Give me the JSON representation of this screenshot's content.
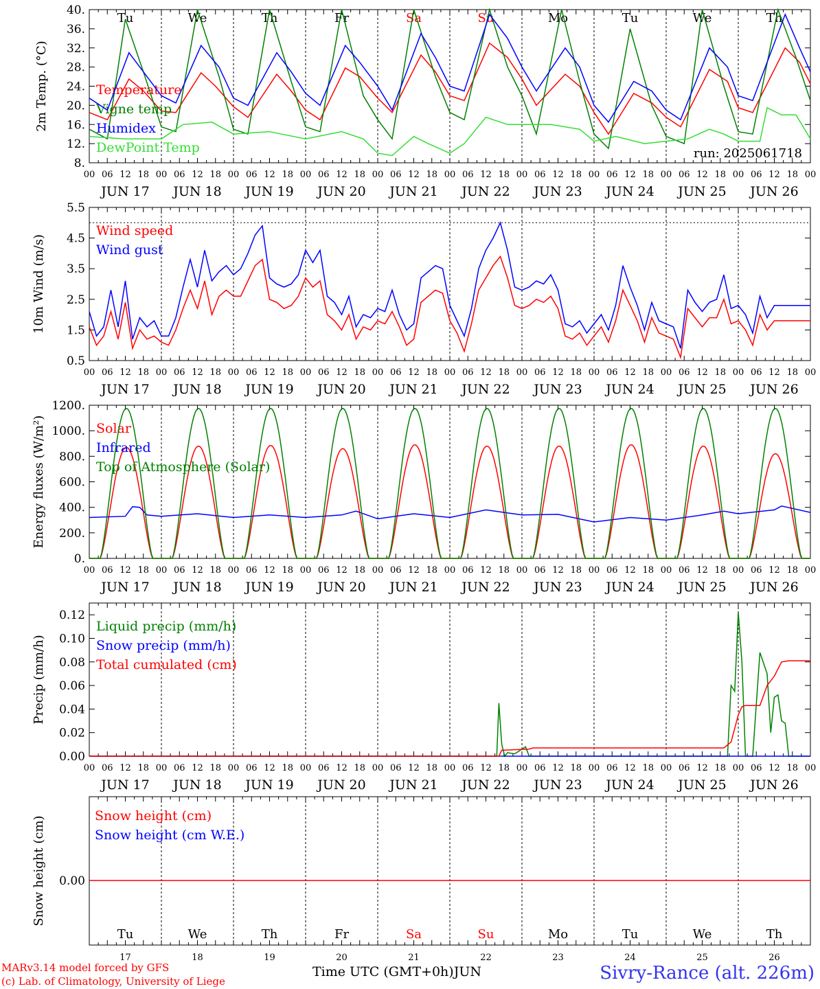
{
  "days": [
    "JUN 17",
    "JUN 18",
    "JUN 19",
    "JUN 20",
    "JUN 21",
    "JUN 22",
    "JUN 23",
    "JUN 24",
    "JUN 25",
    "JUN 26"
  ],
  "weekdays": [
    "Tu",
    "We",
    "Th",
    "Fr",
    "Sa",
    "Su",
    "Mo",
    "Tu",
    "We",
    "Th"
  ],
  "weekday_colors": [
    "#000000",
    "#000000",
    "#000000",
    "#000000",
    "#ff0000",
    "#ff0000",
    "#000000",
    "#000000",
    "#000000",
    "#000000"
  ],
  "day_numbers": [
    "17",
    "18",
    "19",
    "20",
    "21",
    "22",
    "23",
    "24",
    "25",
    "26"
  ],
  "hour_ticks": [
    "00",
    "06",
    "12",
    "18"
  ],
  "colors": {
    "red": "#ff0000",
    "blue": "#0000ff",
    "green": "#008000",
    "lightgreen": "#33dd33"
  },
  "chart_data": [
    {
      "type": "line",
      "ylabel": "2m Temp. (°C)",
      "ylim": [
        8,
        40
      ],
      "yticks": [
        "8.",
        "12.",
        "16.",
        "20.",
        "24.",
        "28.",
        "32.",
        "36.",
        "40."
      ],
      "run_label": "run: 2025061718",
      "x_unit": "days since JUN 17 00 UTC",
      "series": [
        {
          "name": "Temperature",
          "color": "#ff0000",
          "x": [
            0,
            0.25,
            0.55,
            0.75,
            1,
            1.2,
            1.55,
            1.75,
            2,
            2.2,
            2.6,
            2.8,
            3,
            3.2,
            3.55,
            3.75,
            4,
            4.2,
            4.6,
            4.8,
            5,
            5.2,
            5.55,
            5.8,
            6,
            6.2,
            6.6,
            6.8,
            7,
            7.2,
            7.55,
            7.8,
            8,
            8.2,
            8.6,
            8.85,
            9,
            9.2,
            9.65,
            9.85,
            10
          ],
          "values": [
            18.5,
            17,
            25.5,
            23,
            18.8,
            18.5,
            26.8,
            24,
            19.7,
            17.5,
            26.5,
            23,
            19,
            17,
            27.8,
            26,
            21.5,
            18.5,
            30.5,
            27,
            22,
            21,
            33,
            30,
            25.5,
            20,
            26.5,
            24,
            18.5,
            14,
            22.5,
            20.5,
            17.5,
            15.5,
            27.5,
            25,
            19.5,
            18.5,
            32,
            29,
            24.5
          ]
        },
        {
          "name": "Vigne temp",
          "color": "#008000",
          "x": [
            0,
            0.25,
            0.5,
            0.75,
            1,
            1.2,
            1.5,
            1.8,
            2,
            2.2,
            2.5,
            2.8,
            3,
            3.2,
            3.5,
            3.8,
            4,
            4.2,
            4.5,
            4.8,
            5,
            5.2,
            5.55,
            5.8,
            6,
            6.2,
            6.55,
            6.8,
            7,
            7.2,
            7.5,
            7.8,
            8,
            8.25,
            8.5,
            8.8,
            9,
            9.2,
            9.55,
            9.8,
            10
          ],
          "values": [
            15,
            13,
            38,
            27,
            15.5,
            14.5,
            40,
            26,
            15,
            14,
            40,
            25,
            15.5,
            14.5,
            40,
            22,
            17,
            13,
            40,
            26,
            18.5,
            17,
            40,
            28,
            22,
            14,
            40,
            25,
            14,
            11,
            36,
            20,
            13.5,
            12,
            40,
            24,
            14.5,
            14,
            40,
            30,
            21
          ]
        },
        {
          "name": "Humidex",
          "color": "#0000ff",
          "x": [
            0,
            0.25,
            0.55,
            0.75,
            1,
            1.2,
            1.55,
            1.8,
            2,
            2.2,
            2.6,
            2.8,
            3,
            3.2,
            3.55,
            3.75,
            4,
            4.2,
            4.6,
            4.8,
            5,
            5.2,
            5.55,
            5.8,
            6,
            6.2,
            6.6,
            6.8,
            7,
            7.2,
            7.55,
            7.8,
            8,
            8.2,
            8.6,
            8.85,
            9,
            9.2,
            9.65,
            9.85,
            10
          ],
          "values": [
            21.5,
            19,
            31,
            27,
            22,
            20.5,
            32.5,
            28,
            21.5,
            20,
            31,
            27,
            22.5,
            20,
            32.5,
            29,
            24,
            19,
            35,
            30,
            24,
            23,
            39,
            34,
            28,
            23,
            32,
            28,
            20,
            16.5,
            25,
            23,
            19,
            17,
            32,
            28,
            22,
            21,
            39,
            32,
            27
          ]
        },
        {
          "name": "DewPoint Temp",
          "color": "#33dd33",
          "x": [
            0,
            0.5,
            1,
            1.3,
            1.7,
            2,
            2.5,
            3,
            3.5,
            3.8,
            4,
            4.2,
            4.5,
            4.7,
            5,
            5.2,
            5.5,
            5.8,
            6,
            6.4,
            6.8,
            7,
            7.3,
            7.7,
            8,
            8.3,
            8.6,
            8.8,
            9,
            9.3,
            9.4,
            9.6,
            9.8,
            10
          ],
          "values": [
            13.5,
            13,
            13,
            16,
            16.5,
            14,
            14.5,
            13,
            14.5,
            13,
            10,
            9.5,
            13.5,
            12,
            10,
            12,
            17.5,
            16,
            16,
            16,
            15,
            12.5,
            13.5,
            12,
            12.5,
            13,
            15,
            14,
            12.5,
            12.5,
            19.5,
            18,
            18,
            13
          ]
        }
      ]
    },
    {
      "type": "line",
      "ylabel": "10m Wind (m/s)",
      "ylim": [
        0.5,
        5.5
      ],
      "yticks": [
        "0.5",
        "1.5",
        "2.5",
        "3.5",
        "4.5",
        "5.5"
      ],
      "x_unit": "days since JUN 17 00 UTC",
      "reference_line": 5,
      "series": [
        {
          "name": "Wind speed",
          "color": "#ff0000",
          "x": [
            0,
            0.1,
            0.2,
            0.3,
            0.4,
            0.5,
            0.6,
            0.7,
            0.8,
            0.9,
            1,
            1.1,
            1.2,
            1.3,
            1.4,
            1.5,
            1.6,
            1.7,
            1.8,
            1.9,
            2,
            2.1,
            2.2,
            2.3,
            2.4,
            2.5,
            2.6,
            2.7,
            2.8,
            2.9,
            3,
            3.1,
            3.2,
            3.3,
            3.4,
            3.5,
            3.6,
            3.7,
            3.8,
            3.9,
            4,
            4.1,
            4.2,
            4.3,
            4.4,
            4.5,
            4.6,
            4.7,
            4.8,
            4.9,
            5,
            5.1,
            5.2,
            5.3,
            5.4,
            5.5,
            5.6,
            5.7,
            5.8,
            5.9,
            6,
            6.1,
            6.2,
            6.3,
            6.4,
            6.5,
            6.6,
            6.7,
            6.8,
            6.9,
            7,
            7.1,
            7.2,
            7.3,
            7.4,
            7.5,
            7.6,
            7.7,
            7.8,
            7.9,
            8,
            8.1,
            8.2,
            8.3,
            8.4,
            8.5,
            8.6,
            8.7,
            8.8,
            8.9,
            9,
            9.1,
            9.2,
            9.3,
            9.4,
            9.5,
            9.6,
            9.7,
            9.8,
            9.9,
            10
          ],
          "values": [
            1.6,
            1.0,
            1.3,
            2.1,
            1.2,
            2.4,
            0.9,
            1.5,
            1.2,
            1.3,
            1.1,
            1.0,
            1.5,
            2.2,
            2.8,
            2.2,
            3.1,
            2.0,
            2.6,
            2.8,
            2.6,
            2.6,
            3.1,
            3.6,
            3.8,
            2.5,
            2.4,
            2.2,
            2.3,
            2.6,
            3.2,
            2.9,
            3.1,
            2.0,
            1.8,
            1.5,
            2.0,
            1.2,
            1.6,
            1.5,
            1.8,
            1.7,
            2.1,
            1.6,
            1.0,
            1.2,
            2.4,
            2.6,
            2.8,
            2.7,
            1.8,
            1.4,
            0.8,
            1.7,
            2.8,
            3.2,
            3.6,
            3.9,
            3.2,
            2.3,
            2.2,
            2.3,
            2.5,
            2.4,
            2.6,
            2.2,
            1.3,
            1.2,
            1.4,
            1.0,
            1.3,
            1.6,
            1.1,
            1.8,
            2.8,
            2.3,
            1.8,
            1.1,
            1.9,
            1.4,
            1.3,
            1.2,
            0.6,
            2.2,
            1.9,
            1.6,
            1.9,
            1.9,
            2.5,
            1.7,
            1.8,
            1.5,
            1.0,
            2.0,
            1.5,
            1.8,
            1.8,
            1.8,
            1.8,
            1.8,
            1.8
          ]
        },
        {
          "name": "Wind gust",
          "color": "#0000ff",
          "x": [
            0,
            0.1,
            0.2,
            0.3,
            0.4,
            0.5,
            0.6,
            0.7,
            0.8,
            0.9,
            1,
            1.1,
            1.2,
            1.3,
            1.4,
            1.5,
            1.6,
            1.7,
            1.8,
            1.9,
            2,
            2.1,
            2.2,
            2.3,
            2.4,
            2.5,
            2.6,
            2.7,
            2.8,
            2.9,
            3,
            3.1,
            3.2,
            3.3,
            3.4,
            3.5,
            3.6,
            3.7,
            3.8,
            3.9,
            4,
            4.1,
            4.2,
            4.3,
            4.4,
            4.5,
            4.6,
            4.7,
            4.8,
            4.9,
            5,
            5.1,
            5.2,
            5.3,
            5.4,
            5.5,
            5.6,
            5.7,
            5.8,
            5.9,
            6,
            6.1,
            6.2,
            6.3,
            6.4,
            6.5,
            6.6,
            6.7,
            6.8,
            6.9,
            7,
            7.1,
            7.2,
            7.3,
            7.4,
            7.5,
            7.6,
            7.7,
            7.8,
            7.9,
            8,
            8.1,
            8.2,
            8.3,
            8.4,
            8.5,
            8.6,
            8.7,
            8.8,
            8.9,
            9,
            9.1,
            9.2,
            9.3,
            9.4,
            9.5,
            9.6,
            9.7,
            9.8,
            9.9,
            10
          ],
          "values": [
            2.1,
            1.3,
            1.6,
            2.8,
            1.6,
            3.1,
            1.2,
            1.9,
            1.6,
            1.8,
            1.3,
            1.3,
            1.9,
            2.9,
            3.8,
            2.9,
            4.1,
            3.1,
            3.4,
            3.6,
            3.3,
            3.5,
            4.0,
            4.6,
            4.9,
            3.2,
            3.0,
            2.9,
            3.0,
            3.3,
            4.1,
            3.7,
            4.1,
            2.6,
            2.4,
            2.0,
            2.6,
            1.6,
            2.0,
            1.9,
            2.2,
            2.1,
            2.8,
            2.0,
            1.5,
            1.7,
            3.2,
            3.4,
            3.6,
            3.5,
            2.3,
            1.8,
            1.3,
            2.2,
            3.5,
            4.1,
            4.5,
            5.0,
            4.1,
            2.9,
            2.8,
            2.9,
            3.1,
            3.0,
            3.3,
            2.8,
            1.7,
            1.6,
            1.8,
            1.4,
            1.7,
            2.0,
            1.5,
            2.3,
            3.6,
            2.9,
            2.3,
            1.5,
            2.4,
            1.8,
            1.7,
            1.6,
            0.9,
            2.8,
            2.4,
            2.1,
            2.4,
            2.5,
            3.3,
            2.2,
            2.3,
            2.0,
            1.4,
            2.6,
            1.9,
            2.3,
            2.3,
            2.3,
            2.3,
            2.3,
            2.3
          ]
        }
      ]
    },
    {
      "type": "line",
      "ylabel": "Energy fluxes (W/m²)",
      "ylim": [
        0,
        1200
      ],
      "yticks": [
        "0.",
        "200.",
        "400.",
        "600.",
        "800.",
        "1000.",
        "1200."
      ],
      "x_unit": "days since JUN 17 00 UTC",
      "series": [
        {
          "name": "Solar",
          "color": "#ff0000",
          "daily_peak": [
            870,
            880,
            885,
            860,
            890,
            880,
            880,
            890,
            880,
            820
          ],
          "day_start": 0.15,
          "day_end": 0.88
        },
        {
          "name": "Infrared",
          "color": "#0000ff",
          "x": [
            0,
            0.5,
            0.6,
            0.7,
            0.8,
            1,
            1.5,
            2,
            2.5,
            3,
            3.5,
            3.7,
            4,
            4.5,
            5,
            5.5,
            6,
            6.5,
            7,
            7.5,
            8,
            8.5,
            8.8,
            9,
            9.5,
            9.6,
            10
          ],
          "values": [
            320,
            330,
            405,
            400,
            340,
            330,
            350,
            320,
            340,
            320,
            340,
            370,
            310,
            350,
            320,
            380,
            340,
            345,
            285,
            320,
            300,
            340,
            370,
            350,
            380,
            410,
            360
          ]
        },
        {
          "name": "Top of Atmosphere (Solar)",
          "color": "#008000",
          "daily_peak": [
            1175,
            1175,
            1175,
            1175,
            1175,
            1175,
            1175,
            1175,
            1175,
            1175
          ],
          "day_start": 0.15,
          "day_end": 0.88
        }
      ]
    },
    {
      "type": "line",
      "ylabel": "Precip (mm/h)",
      "ylim": [
        0,
        0.13
      ],
      "yticks": [
        "0.00",
        "0.02",
        "0.04",
        "0.06",
        "0.08",
        "0.10",
        "0.12"
      ],
      "x_unit": "days since JUN 17 00 UTC",
      "series": [
        {
          "name": "Liquid precip (mm/h)",
          "color": "#008000",
          "x": [
            0,
            5.65,
            5.68,
            5.72,
            5.76,
            5.8,
            5.9,
            6.05,
            6.1,
            6.15,
            8.85,
            8.9,
            8.95,
            9.0,
            9.05,
            9.1,
            9.2,
            9.3,
            9.4,
            9.45,
            9.5,
            9.55,
            9.6,
            9.65,
            9.7,
            9.8,
            10
          ],
          "values": [
            0,
            0,
            0.045,
            0.01,
            0,
            0.003,
            0.002,
            0.008,
            0,
            0,
            0,
            0.06,
            0.055,
            0.122,
            0.08,
            0,
            0,
            0.088,
            0.07,
            0.02,
            0.05,
            0.052,
            0.03,
            0.028,
            0,
            0,
            0
          ]
        },
        {
          "name": "Snow precip (mm/h)",
          "color": "#0000ff",
          "x": [
            0,
            10
          ],
          "values": [
            0,
            0
          ]
        },
        {
          "name": "Total cumulated (cm)",
          "color": "#ff0000",
          "x": [
            0,
            5.68,
            5.72,
            6.1,
            6.15,
            8.8,
            8.9,
            9.0,
            9.05,
            9.1,
            9.3,
            9.4,
            9.5,
            9.6,
            9.7,
            10
          ],
          "values": [
            0,
            0,
            0.005,
            0.006,
            0.007,
            0.007,
            0.012,
            0.035,
            0.042,
            0.043,
            0.043,
            0.06,
            0.068,
            0.08,
            0.081,
            0.081
          ]
        }
      ]
    },
    {
      "type": "line",
      "ylabel": "Snow height (cm)",
      "yticks": [
        "0.00"
      ],
      "x_unit": "days since JUN 17 00 UTC",
      "series": [
        {
          "name": "Snow height (cm)",
          "color": "#ff0000",
          "x": [
            0,
            10
          ],
          "values": [
            0,
            0
          ]
        },
        {
          "name": "Snow height (cm W.E.)",
          "color": "#0000ff",
          "x": [
            0,
            10
          ],
          "values": [
            0,
            0
          ]
        }
      ]
    }
  ],
  "footer": {
    "model": "MARv3.14 model forced by GFS",
    "lab": "(c) Lab. of Climatology, University of Liege",
    "axis": "Time UTC (GMT+0h)",
    "month": "JUN",
    "station": "Sivry-Rance (alt. 226m)"
  }
}
